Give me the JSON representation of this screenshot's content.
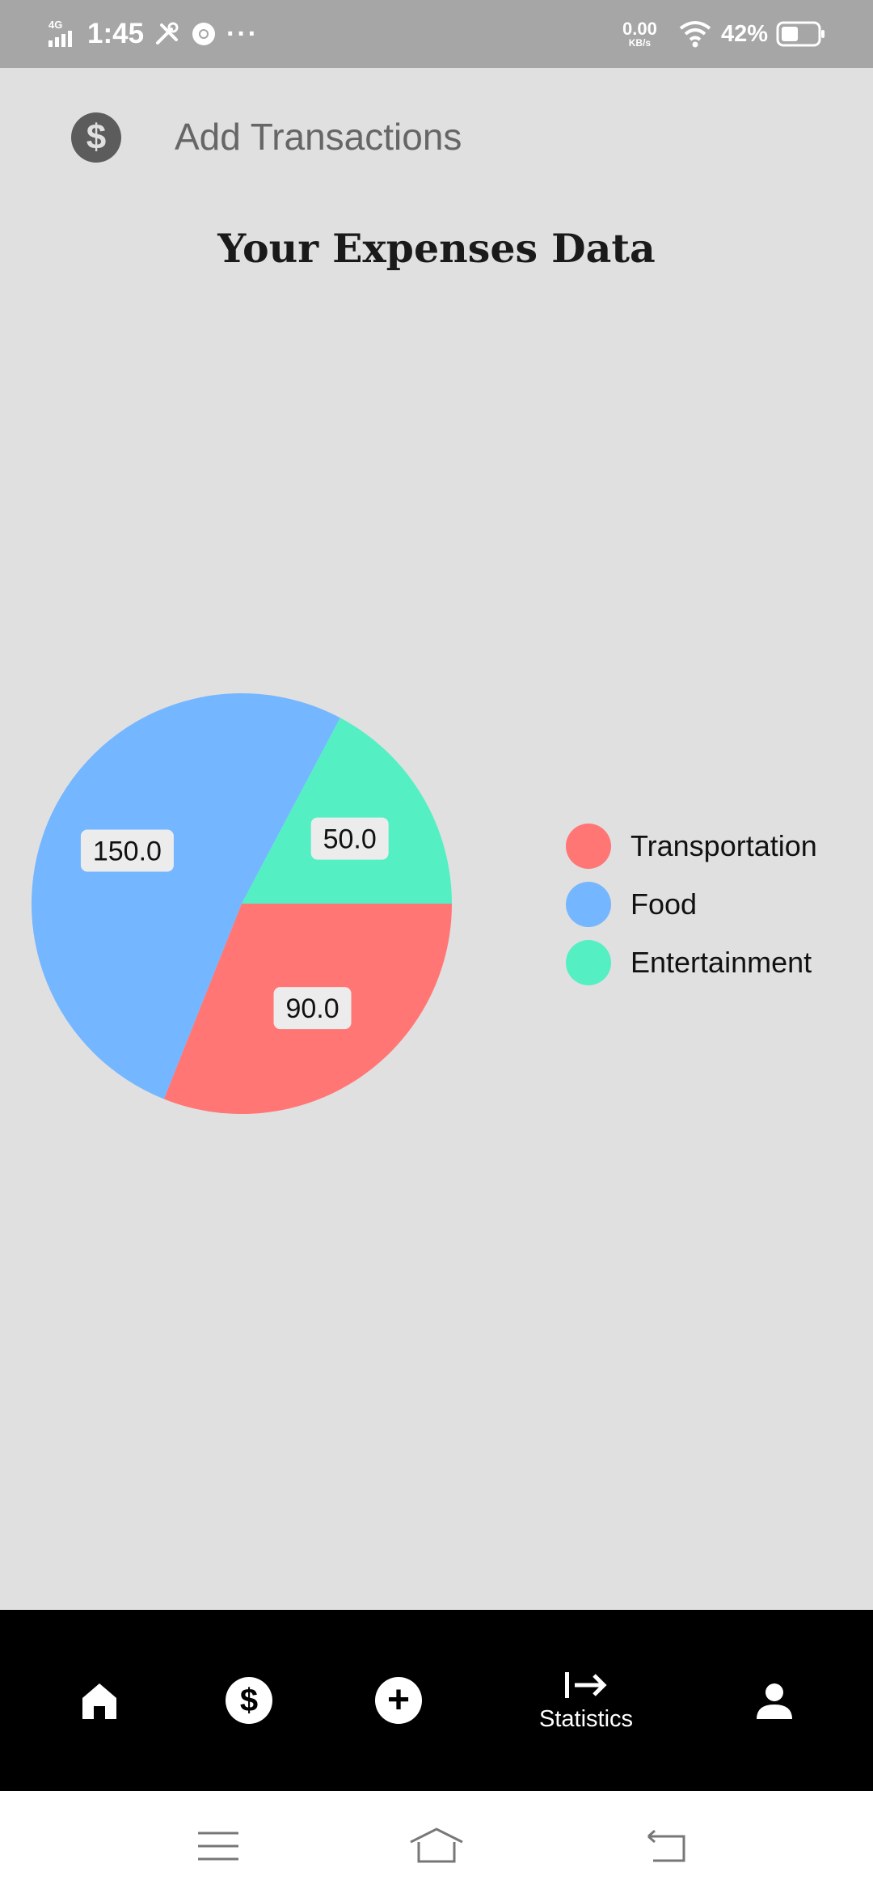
{
  "status_bar": {
    "network": "4G",
    "time": "1:45",
    "more": "···",
    "speed_value": "0.00",
    "speed_unit": "KB/s",
    "battery": "42%"
  },
  "app_bar": {
    "title": "Add Transactions",
    "icon": "dollar-circle-icon"
  },
  "page": {
    "title": "Your Expenses Data"
  },
  "chart_data": {
    "type": "pie",
    "categories": [
      "Transportation",
      "Food",
      "Entertainment"
    ],
    "values": [
      90.0,
      150.0,
      50.0
    ],
    "value_labels": [
      "90.0",
      "150.0",
      "50.0"
    ],
    "colors": [
      "#ff7675",
      "#74b6ff",
      "#55efc4"
    ],
    "legend_position": "right",
    "title": ""
  },
  "bottom_nav": {
    "items": [
      {
        "icon": "home-icon",
        "label": ""
      },
      {
        "icon": "dollar-circle-icon",
        "label": ""
      },
      {
        "icon": "add-circle-icon",
        "label": ""
      },
      {
        "icon": "arrow-right-bar-icon",
        "label": "Statistics"
      },
      {
        "icon": "person-icon",
        "label": ""
      }
    ]
  },
  "system_nav": {
    "buttons": [
      "menu-icon",
      "home-outline-icon",
      "back-icon"
    ]
  },
  "colors": {
    "background": "#e0e0e0",
    "status_bar": "#a6a6a6",
    "nav_bar": "#000000"
  }
}
